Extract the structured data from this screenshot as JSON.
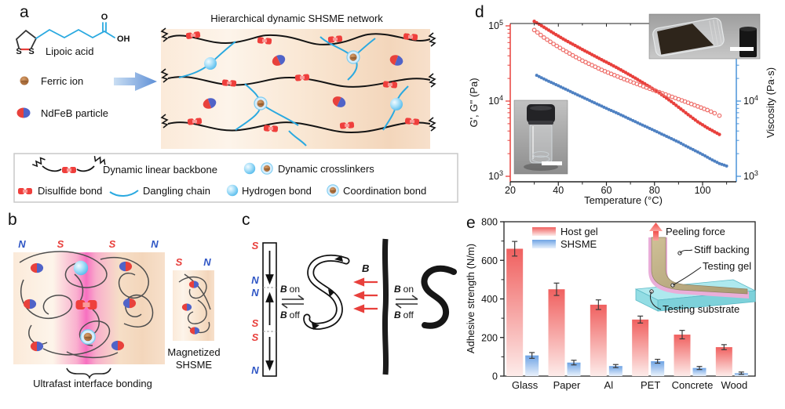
{
  "panels": {
    "a": {
      "label": "a",
      "molecule": {
        "name": "Lipoic acid",
        "o": "O",
        "oh": "OH",
        "s_left": "S",
        "s_right": "S"
      },
      "ferric_label": "Ferric ion",
      "ndfeb_label": "NdFeB particle",
      "network_title": "Hierarchical dynamic SHSME network",
      "legend": {
        "backbone": "Dynamic linear backbone",
        "crosslinkers": "Dynamic crosslinkers",
        "disulfide": "Disulfide bond",
        "dangling": "Dangling chain",
        "hydrogen": "Hydrogen bond",
        "coordination": "Coordination bond"
      }
    },
    "b": {
      "label": "b",
      "poles_top": [
        "N",
        "S",
        "S",
        "N"
      ],
      "small_poles": [
        "S",
        "N"
      ],
      "magnetized_line1": "Magnetized",
      "magnetized_line2": "SHSME",
      "brace_caption": "Ultrafast interface bonding"
    },
    "c": {
      "label": "c",
      "poles": [
        "S",
        "N",
        "N",
        "S",
        "S",
        "N"
      ],
      "b_symbol": "B",
      "on": "on",
      "off": "off"
    },
    "d": {
      "label": "d"
    },
    "e": {
      "label": "e",
      "inset": {
        "peeling_force": "Peeling force",
        "stiff_backing": "Stiff backing",
        "testing_gel": "Testing gel",
        "testing_substrate": "Testing substrate"
      }
    }
  },
  "colors": {
    "red": "#e8403c",
    "blue_axis": "#4b93d9",
    "dangling_blue": "#2aa9e0",
    "pole_blue": "#2f56c5",
    "pink_interface": "#f87fc4",
    "host_bar_top": "#f0605f",
    "shsme_bar_top": "#6ea3e4"
  },
  "chart_data": [
    {
      "type": "line",
      "panel": "d",
      "xlabel": "Temperature (°C)",
      "ylabel_left": "G', G'' (Pa)",
      "ylabel_right": "Viscosity (Pa·s)",
      "x_ticks": [
        20,
        40,
        60,
        80,
        100
      ],
      "x_minor_ticks": [
        30,
        50,
        70,
        90,
        110
      ],
      "xlim": [
        20,
        114
      ],
      "y_scale": "log",
      "y_decades": [
        3,
        4,
        5
      ],
      "ylim": [
        900,
        160000
      ],
      "grid": false,
      "legend_position": "none",
      "series": [
        {
          "name": "G' storage modulus",
          "axis": "left",
          "marker": "filled-circle",
          "color": "#e8403c",
          "points": [
            [
              30,
              115000
            ],
            [
              34,
              96000
            ],
            [
              38,
              80000
            ],
            [
              42,
              67000
            ],
            [
              46,
              57000
            ],
            [
              50,
              48500
            ],
            [
              54,
              41500
            ],
            [
              58,
              35500
            ],
            [
              62,
              30500
            ],
            [
              66,
              26000
            ],
            [
              70,
              22000
            ],
            [
              74,
              18500
            ],
            [
              78,
              15500
            ],
            [
              82,
              12800
            ],
            [
              86,
              10400
            ],
            [
              90,
              8300
            ],
            [
              94,
              6600
            ],
            [
              98,
              5300
            ],
            [
              102,
              4400
            ],
            [
              105,
              3900
            ],
            [
              107,
              3600
            ]
          ]
        },
        {
          "name": "G'' loss modulus",
          "axis": "left",
          "marker": "open-circle",
          "color": "#ee6d68",
          "points": [
            [
              30,
              88000
            ],
            [
              34,
              70000
            ],
            [
              38,
              57500
            ],
            [
              42,
              48000
            ],
            [
              46,
              40500
            ],
            [
              50,
              34500
            ],
            [
              54,
              30000
            ],
            [
              58,
              26000
            ],
            [
              62,
              23000
            ],
            [
              66,
              20400
            ],
            [
              70,
              18200
            ],
            [
              74,
              16300
            ],
            [
              78,
              14600
            ],
            [
              82,
              13100
            ],
            [
              86,
              11800
            ],
            [
              90,
              10600
            ],
            [
              94,
              9500
            ],
            [
              98,
              8500
            ],
            [
              102,
              7600
            ],
            [
              105,
              6900
            ],
            [
              107,
              6400
            ]
          ]
        },
        {
          "name": "Viscosity",
          "axis": "right",
          "marker": "filled-circle",
          "color": "#4f81c2",
          "points": [
            [
              31,
              22000
            ],
            [
              35,
              19000
            ],
            [
              40,
              16000
            ],
            [
              45,
              13400
            ],
            [
              50,
              11300
            ],
            [
              55,
              9500
            ],
            [
              60,
              8000
            ],
            [
              65,
              6800
            ],
            [
              70,
              5700
            ],
            [
              75,
              4800
            ],
            [
              80,
              4050
            ],
            [
              85,
              3400
            ],
            [
              90,
              2850
            ],
            [
              95,
              2350
            ],
            [
              100,
              1950
            ],
            [
              104,
              1650
            ],
            [
              107,
              1480
            ],
            [
              110,
              1370
            ]
          ]
        }
      ]
    },
    {
      "type": "bar",
      "panel": "e",
      "ylabel": "Adhesive strength (N/m)",
      "ylim": [
        0,
        800
      ],
      "yticks": [
        0,
        200,
        400,
        600,
        800
      ],
      "yminor": [
        100,
        300,
        500,
        700
      ],
      "categories": [
        "Glass",
        "Paper",
        "Al",
        "PET",
        "Concrete",
        "Wood"
      ],
      "series": [
        {
          "name": "Host gel",
          "values": [
            660,
            450,
            370,
            293,
            215,
            150
          ],
          "errors": [
            38,
            32,
            25,
            18,
            22,
            13
          ]
        },
        {
          "name": "SHSME",
          "values": [
            107,
            70,
            52,
            77,
            42,
            15
          ],
          "errors": [
            15,
            12,
            8,
            10,
            8,
            6
          ]
        }
      ]
    }
  ]
}
